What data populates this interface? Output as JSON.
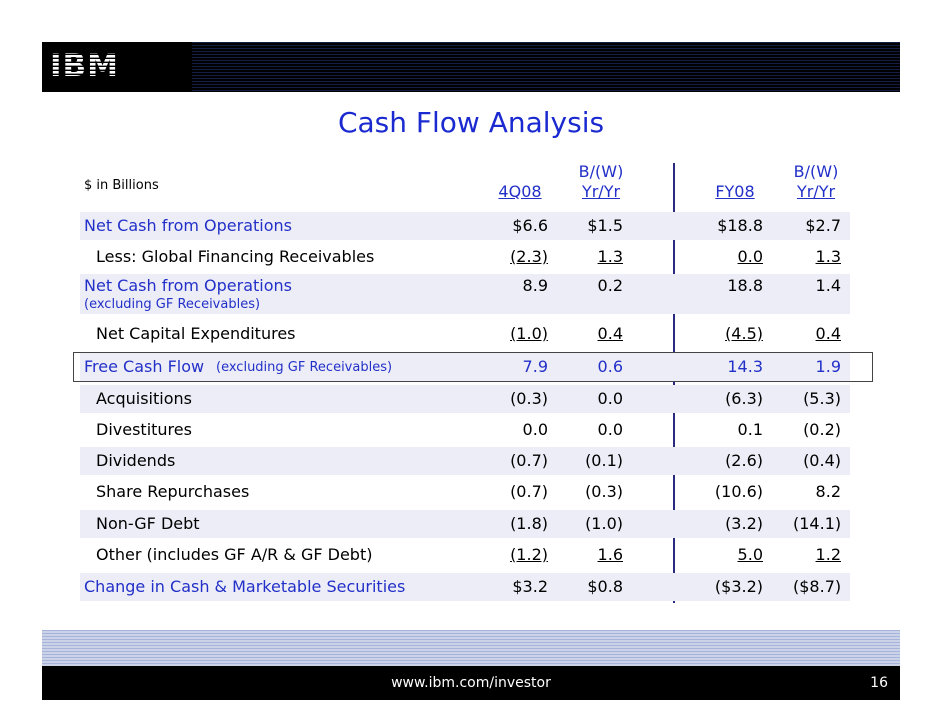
{
  "brand": {
    "logo_text": "IBM"
  },
  "slide": {
    "title": "Cash Flow Analysis",
    "units_label": "$ in Billions",
    "headers": {
      "c1": "4Q08",
      "c2_top": "B/(W)",
      "c2": "Yr/Yr",
      "c3": "FY08",
      "c4_top": "B/(W)",
      "c4": "Yr/Yr"
    },
    "rows": [
      {
        "label": "Net Cash from Operations",
        "note": "",
        "c1": "$6.6",
        "c2": "$1.5",
        "c3": "$18.8",
        "c4": "$2.7"
      },
      {
        "label": "Less: Global Financing Receivables",
        "note": "",
        "c1": "(2.3)",
        "c2": "1.3",
        "c3": "0.0",
        "c4": "1.3"
      },
      {
        "label": "Net Cash from Operations",
        "note": "(excluding GF Receivables)",
        "c1": "8.9",
        "c2": "0.2",
        "c3": "18.8",
        "c4": "1.4"
      },
      {
        "label": "Net Capital Expenditures",
        "note": "",
        "c1": "(1.0)",
        "c2": "0.4",
        "c3": "(4.5)",
        "c4": "0.4"
      },
      {
        "label": "Free Cash Flow",
        "note": "(excluding GF Receivables)",
        "c1": "7.9",
        "c2": "0.6",
        "c3": "14.3",
        "c4": "1.9"
      },
      {
        "label": "Acquisitions",
        "note": "",
        "c1": "(0.3)",
        "c2": "0.0",
        "c3": "(6.3)",
        "c4": "(5.3)"
      },
      {
        "label": "Divestitures",
        "note": "",
        "c1": "0.0",
        "c2": "0.0",
        "c3": "0.1",
        "c4": "(0.2)"
      },
      {
        "label": "Dividends",
        "note": "",
        "c1": "(0.7)",
        "c2": "(0.1)",
        "c3": "(2.6)",
        "c4": "(0.4)"
      },
      {
        "label": "Share Repurchases",
        "note": "",
        "c1": "(0.7)",
        "c2": "(0.3)",
        "c3": "(10.6)",
        "c4": "8.2"
      },
      {
        "label": "Non-GF Debt",
        "note": "",
        "c1": "(1.8)",
        "c2": "(1.0)",
        "c3": "(3.2)",
        "c4": "(14.1)"
      },
      {
        "label": "Other (includes GF A/R & GF Debt)",
        "note": "",
        "c1": "(1.2)",
        "c2": "1.6",
        "c3": "5.0",
        "c4": "1.2"
      },
      {
        "label": "Change in Cash & Marketable Securities",
        "note": "",
        "c1": "$3.2",
        "c2": "$0.8",
        "c3": "($3.2)",
        "c4": "($8.7)"
      }
    ]
  },
  "footer": {
    "url": "www.ibm.com/investor",
    "page_number": "16"
  },
  "colors": {
    "title_blue": "#1a2ad0",
    "row_shade": "#ededf7",
    "bar_black": "#000000"
  }
}
